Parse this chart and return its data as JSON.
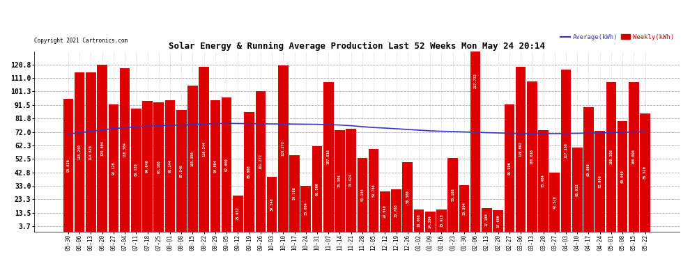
{
  "title": "Solar Energy & Running Average Production Last 52 Weeks Mon May 24 20:14",
  "copyright": "Copyright 2021 Cartronics.com",
  "legend_avg": "Average(kWh)",
  "legend_weekly": "Weekly(kWh)",
  "yticks": [
    3.7,
    13.5,
    23.3,
    33.0,
    42.8,
    52.5,
    62.3,
    72.0,
    81.8,
    91.5,
    101.3,
    111.0,
    120.8
  ],
  "ylim": [
    0,
    130
  ],
  "bar_color": "#dd0000",
  "avg_line_color": "#3333cc",
  "weekly_label_color": "#cc0000",
  "avg_label_color": "#3333cc",
  "background_color": "#ffffff",
  "grid_color": "#aaaaaa",
  "labels": [
    "05-30",
    "06-06",
    "06-13",
    "06-20",
    "06-27",
    "07-04",
    "07-11",
    "07-18",
    "07-25",
    "08-01",
    "08-08",
    "08-15",
    "08-22",
    "08-29",
    "09-05",
    "09-12",
    "09-19",
    "09-26",
    "10-03",
    "10-10",
    "10-17",
    "10-24",
    "10-31",
    "11-07",
    "11-14",
    "11-21",
    "11-28",
    "12-05",
    "12-12",
    "12-19",
    "12-26",
    "01-02",
    "01-09",
    "01-16",
    "01-23",
    "01-30",
    "02-06",
    "02-13",
    "02-20",
    "02-27",
    "03-06",
    "03-13",
    "03-20",
    "03-27",
    "04-03",
    "04-10",
    "04-17",
    "04-24",
    "05-01",
    "05-08",
    "05-15",
    "05-22"
  ],
  "weekly_values": [
    95.92,
    115.24,
    114.828,
    120.804,
    92.128,
    118.304,
    89.12,
    94.64,
    93.168,
    95.144,
    87.84,
    105.356,
    119.244,
    94.864,
    97.0,
    25.932,
    86.608,
    101.272,
    39.548,
    120.272,
    55.388,
    33.004,
    61.56,
    107.816,
    73.304,
    74.424,
    53.144,
    59.768,
    29.048,
    30.768,
    50.38,
    16.068,
    14.384,
    15.928,
    53.168,
    33.504,
    217.732,
    17.18,
    15.6,
    91.996,
    119.092,
    108.616,
    73.464,
    42.52,
    117.168,
    60.932,
    89.896,
    72.908,
    108.108,
    80.04,
    108.096,
    85.52
  ],
  "avg_values": [
    70.5,
    71.5,
    72.5,
    73.5,
    74.5,
    75.0,
    75.8,
    76.2,
    76.5,
    76.8,
    77.0,
    77.3,
    77.8,
    78.0,
    78.2,
    78.1,
    78.0,
    77.9,
    77.8,
    77.8,
    77.7,
    77.6,
    77.5,
    77.3,
    77.0,
    76.5,
    75.8,
    75.2,
    74.8,
    74.3,
    73.8,
    73.3,
    72.8,
    72.5,
    72.3,
    72.0,
    71.8,
    71.5,
    71.3,
    71.0,
    70.8,
    70.7,
    70.8,
    70.8,
    70.9,
    71.0,
    71.2,
    71.3,
    71.5,
    71.8,
    72.0,
    72.2
  ],
  "bar_values_text": [
    "95.920",
    "115.240",
    "114.828",
    "120.804",
    "92.128",
    "118.304",
    "89.120",
    "94.640",
    "93.168",
    "95.144",
    "87.840",
    "105.356",
    "119.244",
    "94.864",
    "97.000",
    "25.932",
    "86.608",
    "101.272",
    "39.548",
    "120.272",
    "55.388",
    "33.004",
    "61.560",
    "107.816",
    "73.304",
    "74.424",
    "53.144",
    "59.768",
    "29.048",
    "30.768",
    "50.380",
    "16.068",
    "14.384",
    "15.928",
    "53.168",
    "33.504",
    "217.732",
    "17.180",
    "15.600",
    "91.996",
    "119.092",
    "108.616",
    "73.464",
    "42.520",
    "117.168",
    "60.932",
    "89.896",
    "72.908",
    "108.108",
    "80.040",
    "108.096",
    "85.520"
  ]
}
